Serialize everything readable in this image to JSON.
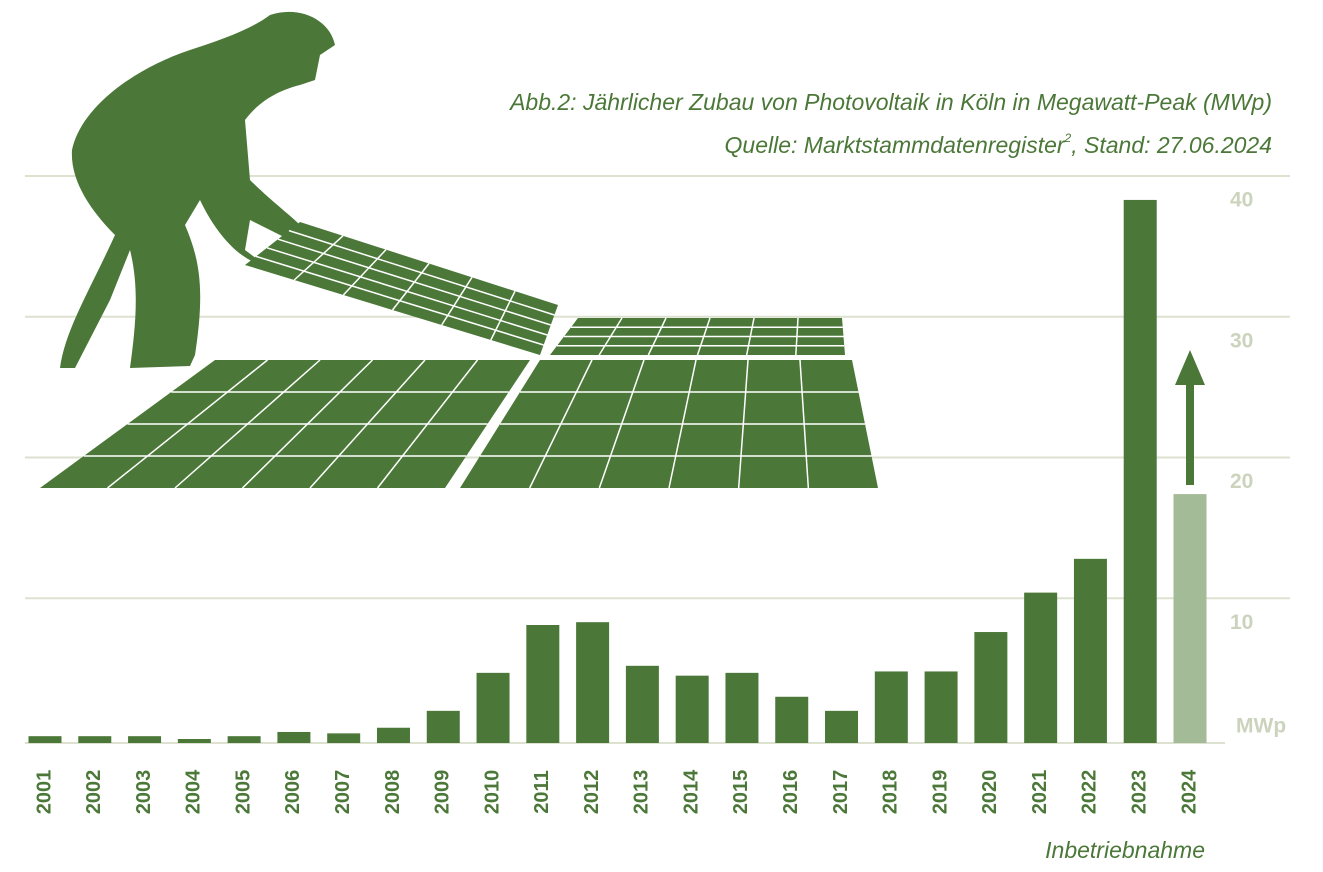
{
  "chart_data": {
    "type": "bar",
    "title": "Abb.2: Jährlicher Zubau von Photovoltaik in Köln in Megawatt-Peak (MWp)",
    "subtitle": "Quelle: Marktstammdatenregister",
    "subtitle_footnote": "2",
    "subtitle_end": ", Stand: 27.06.2024",
    "x_label": "Inbetriebnahme",
    "y_label": "MWp",
    "categories": [
      "2001",
      "2002",
      "2003",
      "2004",
      "2005",
      "2006",
      "2007",
      "2008",
      "2009",
      "2010",
      "2011",
      "2012",
      "2013",
      "2014",
      "2015",
      "2016",
      "2017",
      "2018",
      "2019",
      "2020",
      "2021",
      "2022",
      "2023",
      "2024"
    ],
    "values": [
      0.2,
      0.2,
      0.2,
      0,
      0.2,
      0.5,
      0.4,
      0.8,
      2.0,
      4.7,
      8.1,
      8.3,
      5.2,
      4.5,
      4.7,
      3.0,
      2.0,
      4.8,
      4.8,
      7.6,
      10.4,
      12.8,
      38.3,
      17.4
    ],
    "colors": [
      "#4b7838",
      "#4b7838",
      "#4b7838",
      "#4b7838",
      "#4b7838",
      "#4b7838",
      "#4b7838",
      "#4b7838",
      "#4b7838",
      "#4b7838",
      "#4b7838",
      "#4b7838",
      "#4b7838",
      "#4b7838",
      "#4b7838",
      "#4b7838",
      "#4b7838",
      "#4b7838",
      "#4b7838",
      "#4b7838",
      "#4b7838",
      "#4b7838",
      "#4b7838",
      "#a3bb96"
    ],
    "ylim": [
      0,
      40
    ],
    "yticks": [
      10,
      20,
      30,
      40
    ],
    "grid": true
  }
}
